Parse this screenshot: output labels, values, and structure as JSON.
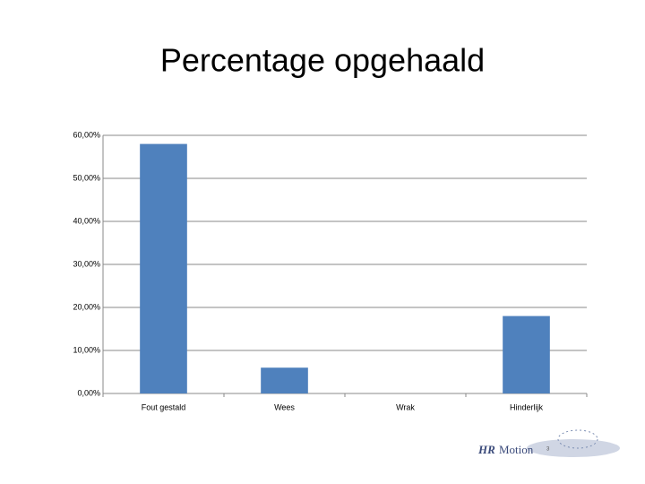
{
  "chart_data": {
    "type": "bar",
    "title": "Percentage opgehaald",
    "categories": [
      "Fout gestald",
      "Wees",
      "Wrak",
      "Hinderlijk"
    ],
    "values": [
      58,
      6,
      0,
      18
    ],
    "color": "#4f81bd",
    "ylim": [
      0,
      60
    ],
    "yticks": [
      {
        "value": 0,
        "label": "0,00%"
      },
      {
        "value": 10,
        "label": "10,00%"
      },
      {
        "value": 20,
        "label": "20,00%"
      },
      {
        "value": 30,
        "label": "30,00%"
      },
      {
        "value": 40,
        "label": "40,00%"
      },
      {
        "value": 50,
        "label": "50,00%"
      },
      {
        "value": 60,
        "label": "60,00%"
      }
    ],
    "grid": true
  },
  "footer": {
    "logo_bold": "HR",
    "logo_rest": "Motion",
    "page_number": "3"
  }
}
